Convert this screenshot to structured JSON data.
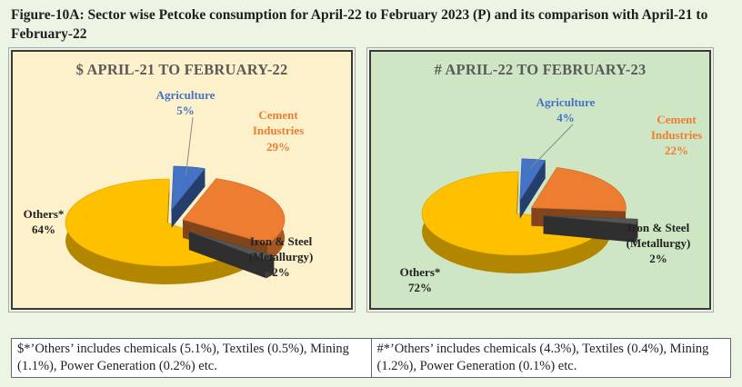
{
  "figure_title": "Figure-10A: Sector wise Petcoke consumption for April-22 to February 2023 (P) and its comparison with April-21 to February-22",
  "colors": {
    "agriculture": "#4472c4",
    "cement": "#ed7d31",
    "iron_steel": "#555555",
    "others": "#ffc000"
  },
  "chart_data": [
    {
      "type": "pie",
      "title": "$ APRIL-21 TO FEBRUARY-22",
      "slices": [
        {
          "label": "Agriculture",
          "value": 5,
          "value_label": "5%"
        },
        {
          "label": "Cement Industries",
          "value": 29,
          "value_label": "29%"
        },
        {
          "label": "Iron & Steel (Metallurgy)",
          "value": 2,
          "value_label": "2%"
        },
        {
          "label": "Others*",
          "value": 64,
          "value_label": "64%"
        }
      ]
    },
    {
      "type": "pie",
      "title": "# APRIL-22 TO FEBRUARY-23",
      "slices": [
        {
          "label": "Agriculture",
          "value": 4,
          "value_label": "4%"
        },
        {
          "label": "Cement Industries",
          "value": 22,
          "value_label": "22%"
        },
        {
          "label": "Iron & Steel (Metallurgy)",
          "value": 2,
          "value_label": "2%"
        },
        {
          "label": "Others*",
          "value": 72,
          "value_label": "72%"
        }
      ]
    }
  ],
  "notes": {
    "left": "$*’Others’ includes chemicals (5.1%), Textiles (0.5%), Mining (1.1%), Power Generation (0.2%) etc.",
    "right": "#*’Others’ includes chemicals (4.3%), Textiles (0.4%), Mining (1.2%), Power Generation (0.1%) etc."
  }
}
